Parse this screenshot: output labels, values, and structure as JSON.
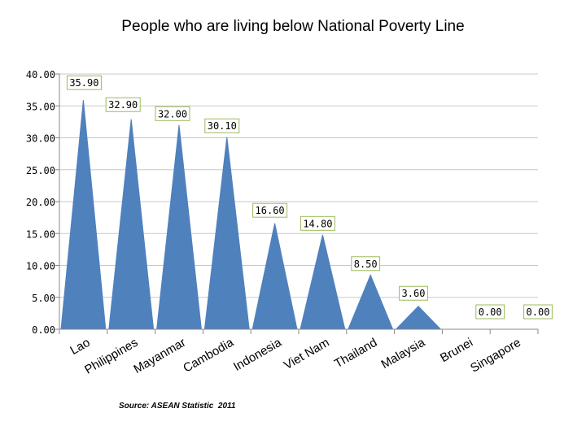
{
  "chart_data": {
    "type": "area",
    "title": "People who are living below National Poverty Line",
    "categories": [
      "Lao",
      "Philippines",
      "Mayanmar",
      "Cambodia",
      "Indonesia",
      "Viet Nam",
      "Thailand",
      "Malaysia",
      "Brunei",
      "Singapore"
    ],
    "values": [
      35.9,
      32.9,
      32.0,
      30.1,
      16.6,
      14.8,
      8.5,
      3.6,
      0.0,
      0.0
    ],
    "data_labels": [
      "35.90",
      "32.90",
      "32.00",
      "30.10",
      "16.60",
      "14.80",
      "8.50",
      "3.60",
      "0.00",
      "0.00"
    ],
    "y_ticks": [
      "0.00",
      "5.00",
      "10.00",
      "15.00",
      "20.00",
      "25.00",
      "30.00",
      "35.00",
      "40.00"
    ],
    "ylim": [
      0,
      40
    ],
    "xlabel": "",
    "ylabel": "",
    "grid": true,
    "legend": "none",
    "series_color": "#4f81bd",
    "label_border_color": "#9bbb59"
  },
  "source_note": "Source: ASEAN Statistic  2011"
}
